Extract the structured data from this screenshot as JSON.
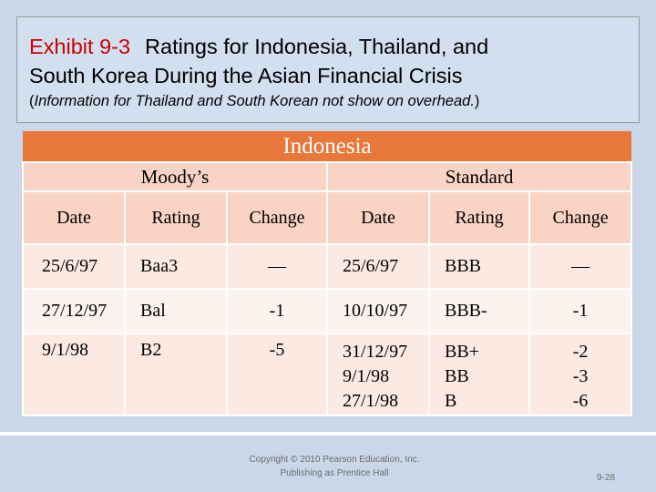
{
  "title": {
    "exhibit": "Exhibit 9-3",
    "line1": "Ratings for Indonesia, Thailand, and",
    "line2": "South Korea During the Asian Financial Crisis",
    "note_open": "(",
    "note_italic": "Information for Thailand and South Korean not show on overhead.",
    "note_close": ")"
  },
  "table": {
    "header": "Indonesia",
    "groups": [
      "Moody’s",
      "Standard"
    ],
    "columns": [
      "Date",
      "Rating",
      "Change",
      "Date",
      "Rating",
      "Change"
    ],
    "rows": [
      {
        "m_date": "25/6/97",
        "m_rating": "Baa3",
        "m_change": "—",
        "s_date": "25/6/97",
        "s_rating": "BBB",
        "s_change": "—"
      },
      {
        "m_date": "27/12/97",
        "m_rating": "Bal",
        "m_change": "-1",
        "s_date": "10/10/97",
        "s_rating": "BBB-",
        "s_change": "-1"
      },
      {
        "m_date": "9/1/98",
        "m_rating": "B2",
        "m_change": "-5",
        "s_dates": [
          "31/12/97",
          "9/1/98",
          "27/1/98"
        ],
        "s_ratings": [
          "BB+",
          "BB",
          "B"
        ],
        "s_changes": [
          "-2",
          "-3",
          "-6"
        ]
      }
    ]
  },
  "footer": {
    "copyright_line1": "Copyright © 2010 Pearson Education, Inc.",
    "copyright_line2": "Publishing as Prentice Hall",
    "page": "9-28"
  }
}
